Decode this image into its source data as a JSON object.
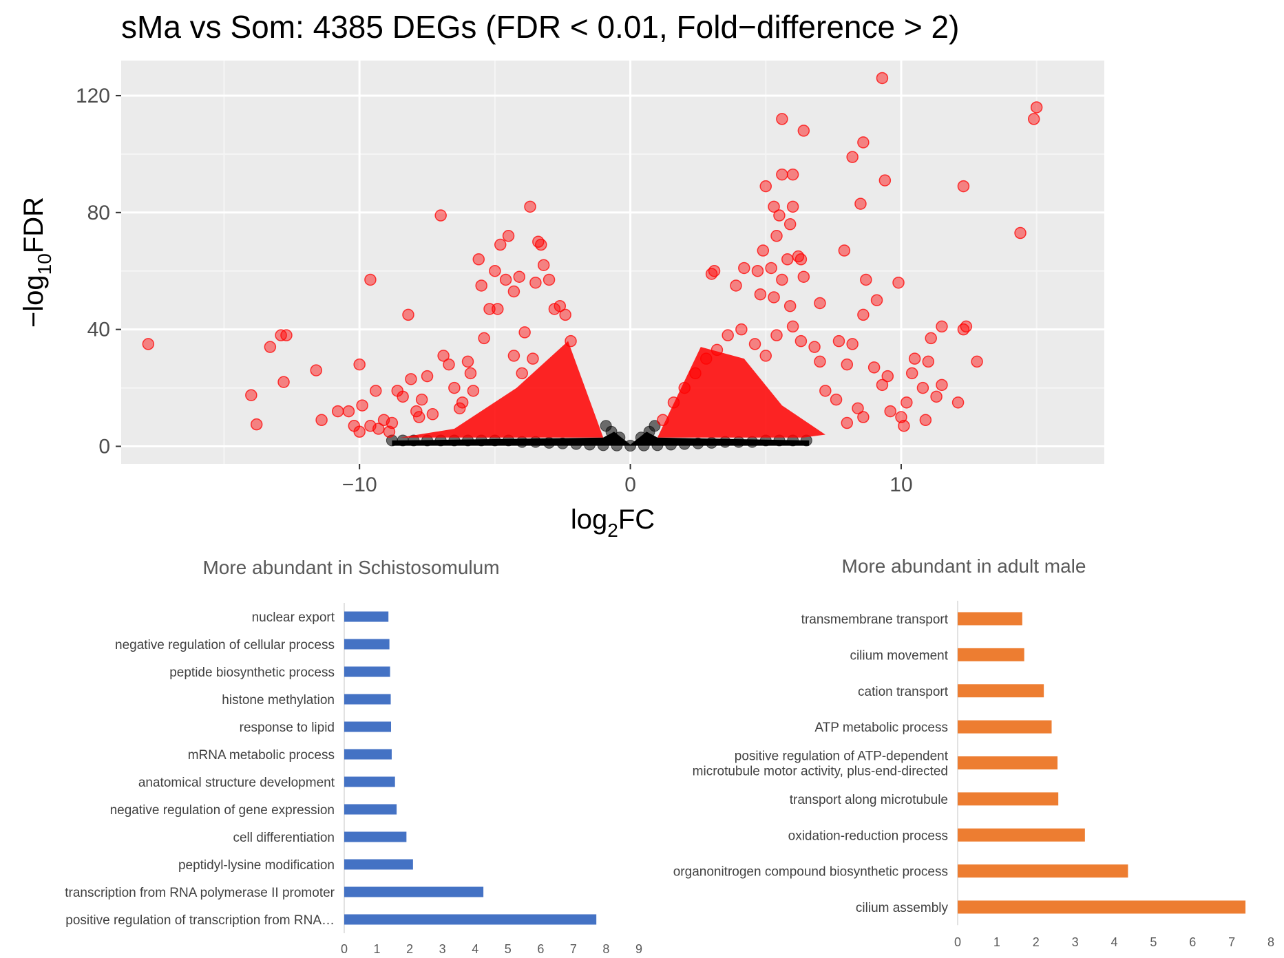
{
  "chart_data": [
    {
      "type": "scatter",
      "title": "sMa vs Som: 4385 DEGs (FDR < 0.01, Fold−difference > 2)",
      "xlabel": "log2FC",
      "ylabel": "−log10FDR",
      "xlabel_parts": {
        "base": "log",
        "sub": "2",
        "rest": "FC"
      },
      "ylabel_parts": {
        "pre": "−log",
        "sub": "10",
        "rest": "FDR"
      },
      "xlim": [
        -18.8,
        17.5
      ],
      "ylim": [
        -6,
        132
      ],
      "x_ticks": [
        -10,
        0,
        10
      ],
      "x_tick_labels": [
        "−10",
        "0",
        "10"
      ],
      "y_ticks": [
        0,
        40,
        80,
        120
      ],
      "y_tick_labels": [
        "0",
        "40",
        "80",
        "120"
      ],
      "grid": true,
      "significant_color": "#ff0000",
      "nonsignificant_color": "#000000",
      "panel_background": "#ebebeb",
      "significant_points": [
        [
          -17.8,
          35
        ],
        [
          -14,
          17.5
        ],
        [
          -13.8,
          7.5
        ],
        [
          -13.3,
          34
        ],
        [
          -12.9,
          38
        ],
        [
          -12.7,
          38
        ],
        [
          -12.8,
          22
        ],
        [
          -11.6,
          26
        ],
        [
          -11.4,
          9
        ],
        [
          -10.8,
          12
        ],
        [
          -10.4,
          12
        ],
        [
          -10.2,
          7
        ],
        [
          -10,
          5
        ],
        [
          -9.9,
          14
        ],
        [
          -10,
          28
        ],
        [
          -9.6,
          57
        ],
        [
          -9.6,
          7
        ],
        [
          -9.4,
          19
        ],
        [
          -9.1,
          9
        ],
        [
          -8.8,
          8
        ],
        [
          -8.6,
          19
        ],
        [
          -8.4,
          17
        ],
        [
          -8.2,
          45
        ],
        [
          -8.1,
          23
        ],
        [
          -7.9,
          12
        ],
        [
          -7.7,
          16
        ],
        [
          -7.5,
          24
        ],
        [
          -7.3,
          11
        ],
        [
          -7,
          79
        ],
        [
          -6.9,
          31
        ],
        [
          -6.7,
          28
        ],
        [
          -6.5,
          20
        ],
        [
          -6.3,
          13
        ],
        [
          -6.0,
          29
        ],
        [
          -5.8,
          19
        ],
        [
          -5.6,
          64
        ],
        [
          -5.5,
          55
        ],
        [
          -5.4,
          37
        ],
        [
          -5.2,
          47
        ],
        [
          -5.0,
          60
        ],
        [
          -4.8,
          69
        ],
        [
          -4.6,
          57
        ],
        [
          -4.5,
          72
        ],
        [
          -4.3,
          53
        ],
        [
          -4.1,
          58
        ],
        [
          -3.9,
          39
        ],
        [
          -3.7,
          82
        ],
        [
          -3.5,
          56
        ],
        [
          -3.4,
          70
        ],
        [
          -3.3,
          69
        ],
        [
          -3.2,
          62
        ],
        [
          -3.0,
          57
        ],
        [
          -2.8,
          47
        ],
        [
          -2.6,
          48
        ],
        [
          -2.4,
          45
        ],
        [
          -2.2,
          36
        ],
        [
          -4.9,
          47
        ],
        [
          -4.3,
          31
        ],
        [
          -4.0,
          25
        ],
        [
          -3.6,
          30
        ],
        [
          -5.9,
          25
        ],
        [
          -6.2,
          15
        ],
        [
          -7.8,
          10
        ],
        [
          -8.9,
          5
        ],
        [
          -9.3,
          6
        ],
        [
          5.6,
          112
        ],
        [
          6.4,
          108
        ],
        [
          9.3,
          126
        ],
        [
          15.0,
          116
        ],
        [
          14.9,
          112
        ],
        [
          8.6,
          104
        ],
        [
          8.2,
          99
        ],
        [
          9.4,
          91
        ],
        [
          6.0,
          93
        ],
        [
          5.6,
          93
        ],
        [
          5.0,
          89
        ],
        [
          12.3,
          89
        ],
        [
          5.3,
          82
        ],
        [
          6.0,
          82
        ],
        [
          8.5,
          83
        ],
        [
          5.5,
          79
        ],
        [
          5.9,
          76
        ],
        [
          5.4,
          72
        ],
        [
          14.4,
          73
        ],
        [
          4.9,
          67
        ],
        [
          6.2,
          65
        ],
        [
          7.9,
          67
        ],
        [
          5.8,
          64
        ],
        [
          6.3,
          64
        ],
        [
          3.1,
          60
        ],
        [
          4.2,
          61
        ],
        [
          4.7,
          60
        ],
        [
          5.2,
          61
        ],
        [
          5.6,
          57
        ],
        [
          6.4,
          58
        ],
        [
          8.7,
          57
        ],
        [
          9.9,
          56
        ],
        [
          3.0,
          59
        ],
        [
          3.9,
          55
        ],
        [
          4.8,
          52
        ],
        [
          5.3,
          51
        ],
        [
          5.9,
          48
        ],
        [
          7.0,
          49
        ],
        [
          8.6,
          45
        ],
        [
          9.1,
          50
        ],
        [
          10.5,
          30
        ],
        [
          11.1,
          37
        ],
        [
          11.5,
          41
        ],
        [
          11.0,
          29
        ],
        [
          12.3,
          40
        ],
        [
          12.4,
          41
        ],
        [
          12.8,
          29
        ],
        [
          10.4,
          25
        ],
        [
          10.8,
          20
        ],
        [
          10.2,
          15
        ],
        [
          9.6,
          12
        ],
        [
          11.5,
          21
        ],
        [
          11.3,
          17
        ],
        [
          12.1,
          15
        ],
        [
          9.0,
          27
        ],
        [
          9.5,
          24
        ],
        [
          10.0,
          10
        ],
        [
          8.6,
          10
        ],
        [
          8.0,
          8
        ],
        [
          7.6,
          16
        ],
        [
          7.2,
          19
        ],
        [
          7.0,
          29
        ],
        [
          6.8,
          34
        ],
        [
          6.3,
          36
        ],
        [
          6.0,
          41
        ],
        [
          5.4,
          38
        ],
        [
          4.6,
          35
        ],
        [
          4.1,
          40
        ],
        [
          3.6,
          38
        ],
        [
          3.2,
          33
        ],
        [
          2.8,
          30
        ],
        [
          2.4,
          25
        ],
        [
          2.0,
          20
        ],
        [
          1.6,
          15
        ],
        [
          1.2,
          9
        ],
        [
          8.0,
          28
        ],
        [
          7.7,
          36
        ],
        [
          8.2,
          35
        ],
        [
          8.4,
          13
        ],
        [
          9.3,
          21
        ],
        [
          10.1,
          7
        ],
        [
          10.9,
          9
        ],
        [
          5.0,
          31
        ]
      ],
      "nonsignificant_points": [
        [
          -8.8,
          2
        ],
        [
          -8.4,
          2
        ],
        [
          -8,
          2
        ],
        [
          -7.5,
          2
        ],
        [
          -7,
          2
        ],
        [
          -6.5,
          2
        ],
        [
          -6,
          2
        ],
        [
          -5.5,
          2
        ],
        [
          -5,
          2
        ],
        [
          -4.5,
          2
        ],
        [
          -4,
          1.5
        ],
        [
          -3.5,
          1.5
        ],
        [
          -3,
          1.2
        ],
        [
          -2.5,
          1
        ],
        [
          -2,
          0.8
        ],
        [
          -1.5,
          0.6
        ],
        [
          -1,
          0.4
        ],
        [
          -0.5,
          0.3
        ],
        [
          0,
          0.2
        ],
        [
          0.5,
          0.3
        ],
        [
          1,
          0.4
        ],
        [
          1.5,
          0.6
        ],
        [
          2,
          0.8
        ],
        [
          2.5,
          1
        ],
        [
          3,
          1.2
        ],
        [
          3.5,
          1.5
        ],
        [
          4,
          1.5
        ],
        [
          4.5,
          1.5
        ],
        [
          5,
          2
        ],
        [
          5.5,
          2
        ],
        [
          6,
          2
        ],
        [
          6.5,
          2
        ],
        [
          -0.9,
          7
        ],
        [
          -0.7,
          5
        ],
        [
          -0.4,
          3
        ],
        [
          0.4,
          3
        ],
        [
          0.7,
          5
        ],
        [
          0.9,
          7
        ]
      ]
    },
    {
      "type": "bar",
      "orientation": "horizontal",
      "title": "More abundant in Schistosomulum",
      "color": "#4472c4",
      "categories": [
        "nuclear export",
        "negative regulation of cellular process",
        "peptide biosynthetic process",
        "histone methylation",
        "response to lipid",
        "mRNA metabolic process",
        "anatomical structure development",
        "negative regulation of gene expression",
        "cell differentiation",
        "peptidyl-lysine modification",
        "transcription from RNA polymerase II promoter",
        "positive regulation of transcription from RNA…"
      ],
      "values": [
        1.35,
        1.38,
        1.4,
        1.42,
        1.43,
        1.45,
        1.55,
        1.6,
        1.9,
        2.1,
        4.25,
        7.7
      ],
      "xlim": [
        0,
        9
      ],
      "x_ticks": [
        "0",
        "1",
        "2",
        "3",
        "4",
        "5",
        "6",
        "7",
        "8",
        "9"
      ]
    },
    {
      "type": "bar",
      "orientation": "horizontal",
      "title": "More abundant in adult male",
      "color": "#ed7d31",
      "categories": [
        "transmembrane transport",
        "cilium movement",
        "cation transport",
        "ATP metabolic process",
        "positive regulation of ATP-dependent\nmicrotubule motor activity, plus-end-directed",
        "transport along microtubule",
        "oxidation-reduction process",
        "organonitrogen compound biosynthetic process",
        "cilium assembly"
      ],
      "values": [
        1.65,
        1.7,
        2.2,
        2.4,
        2.55,
        2.57,
        3.25,
        4.35,
        7.35
      ],
      "xlim": [
        0,
        8
      ],
      "x_ticks": [
        "0",
        "1",
        "2",
        "3",
        "4",
        "5",
        "6",
        "7",
        "8"
      ]
    }
  ]
}
